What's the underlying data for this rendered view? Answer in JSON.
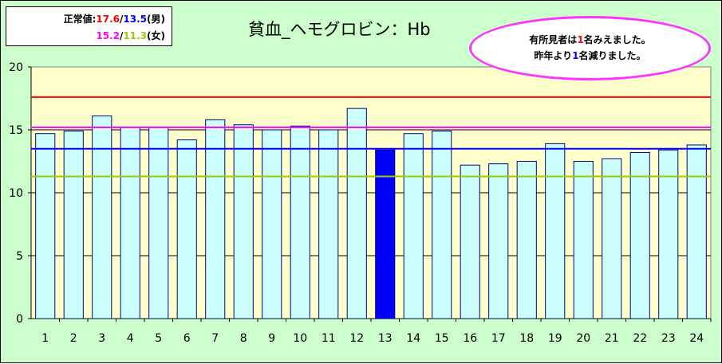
{
  "legend": {
    "prefix": "正常値:",
    "male_upper": "17.6",
    "slash": "/",
    "male_lower": "13.5",
    "male_suffix": "(男)",
    "female_upper": "15.2",
    "female_lower": "11.3",
    "female_suffix": "(女)"
  },
  "callout": {
    "line1_a": "有所見者は",
    "line1_num": "1",
    "line1_b": "名みえました。",
    "line2_a": "昨年より",
    "line2_num": "1",
    "line2_b": "名減りました。"
  },
  "colors": {
    "plot_bg": "#ffffcc",
    "bar_fill": "#ccffff",
    "bar_edge": "#000080",
    "highlight_bar": "#0000ff",
    "male_upper_line": "#ff0000",
    "female_upper_line": "#ff00ff",
    "male_lower_line": "#0000ff",
    "female_lower_line": "#99cc00"
  },
  "chart_data": {
    "type": "bar",
    "title": "貧血_ヘモグロビン：Hb",
    "categories": [
      "1",
      "2",
      "3",
      "4",
      "5",
      "6",
      "7",
      "8",
      "9",
      "10",
      "11",
      "12",
      "13",
      "14",
      "15",
      "16",
      "17",
      "18",
      "19",
      "20",
      "21",
      "22",
      "23",
      "24"
    ],
    "values": [
      14.7,
      14.9,
      16.1,
      15.2,
      15.2,
      14.2,
      15.8,
      15.4,
      15.0,
      15.3,
      15.0,
      16.7,
      13.4,
      14.7,
      14.9,
      12.2,
      12.3,
      12.5,
      13.9,
      12.5,
      12.7,
      13.2,
      13.4,
      13.8
    ],
    "highlight_index": 12,
    "ylim": [
      0,
      20
    ],
    "yticks": [
      0,
      5,
      10,
      15,
      20
    ],
    "grid": "horizontal",
    "reference_lines": [
      {
        "value": 17.6,
        "color": "#ff0000"
      },
      {
        "value": 15.2,
        "color": "#ff00ff"
      },
      {
        "value": 13.5,
        "color": "#0000ff"
      },
      {
        "value": 11.3,
        "color": "#99cc00"
      }
    ]
  }
}
